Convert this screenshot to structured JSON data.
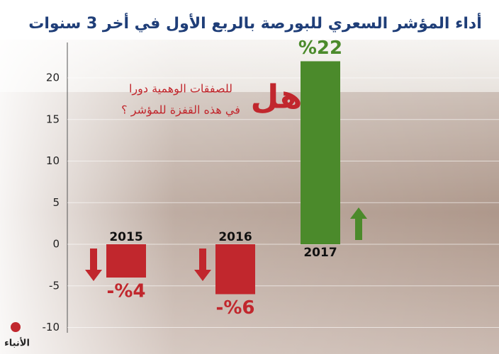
{
  "chart_data": {
    "type": "bar",
    "title": "أداء المؤشر السعري للبورصة بالربع الأول في أخر 3 سنوات",
    "annotation_big": "هل",
    "annotation_line1": "للصفقات الوهمية دورا",
    "annotation_line2": "في هذه القفزة للمؤشر ؟",
    "logo": "الأنباء",
    "categories": [
      "2015",
      "2016",
      "2017"
    ],
    "values": [
      -4,
      -6,
      22
    ],
    "value_labels": [
      "-%4",
      "-%6",
      "%22"
    ],
    "colors": [
      "#c1272d",
      "#c1272d",
      "#4b8a2b"
    ],
    "ylim": [
      -10,
      24
    ],
    "yticks": [
      -10,
      -5,
      0,
      5,
      10,
      15,
      20
    ],
    "grid": true
  }
}
